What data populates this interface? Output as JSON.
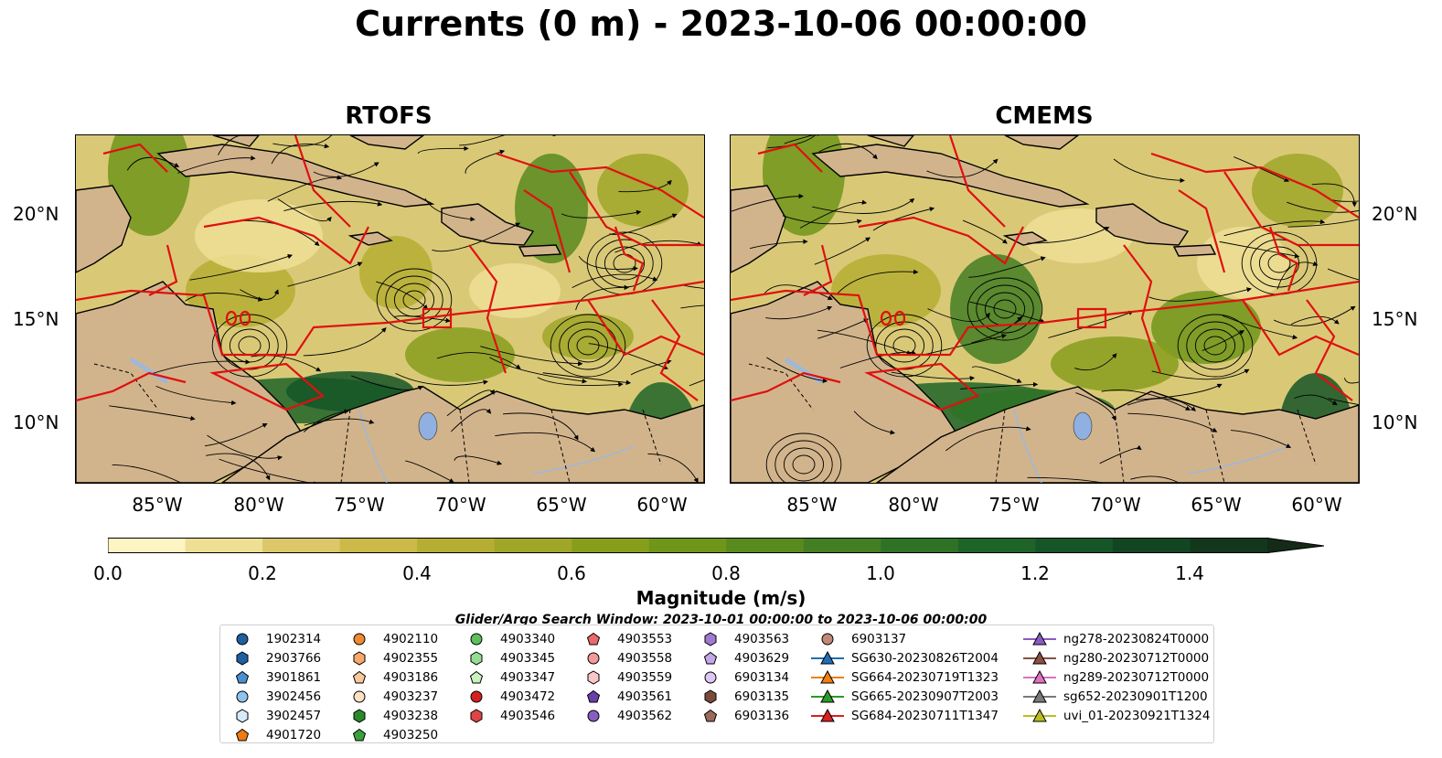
{
  "title": "Currents (0 m) - 2023-10-06 00:00:00",
  "panels": [
    {
      "title": "RTOFS"
    },
    {
      "title": "CMEMS"
    }
  ],
  "axes": {
    "lat_ticks": [
      "20°N",
      "15°N",
      "10°N"
    ],
    "lon_ticks": [
      "85°W",
      "80°W",
      "75°W",
      "70°W",
      "65°W",
      "60°W"
    ],
    "lon_range": [
      -89,
      -58
    ],
    "lat_range": [
      7,
      24
    ]
  },
  "colorbar": {
    "label": "Magnitude (m/s)",
    "ticks": [
      "0.0",
      "0.2",
      "0.4",
      "0.6",
      "0.8",
      "1.0",
      "1.2",
      "1.4"
    ],
    "range": [
      0,
      1.5
    ],
    "extend": "max",
    "colors": [
      "#fdf5c4",
      "#efdf95",
      "#dcc76a",
      "#cbb94a",
      "#b5ae33",
      "#9fa628",
      "#879e1d",
      "#6f9519",
      "#588a1e",
      "#437e22",
      "#2f7226",
      "#1e6428",
      "#155527",
      "#124622",
      "#12371c",
      "#152a17"
    ]
  },
  "search_window": "Glider/Argo Search Window: 2023-10-01 00:00:00 to 2023-10-06 00:00:00",
  "legend": {
    "columns": [
      [
        {
          "label": "1902314",
          "marker": "circle",
          "color": "#1f5f9f"
        },
        {
          "label": "2903766",
          "marker": "hexagon",
          "color": "#1f5f9f"
        },
        {
          "label": "3901861",
          "marker": "pentagon",
          "color": "#4a90d0"
        },
        {
          "label": "3902456",
          "marker": "circle",
          "color": "#8ec3ee"
        },
        {
          "label": "3902457",
          "marker": "hexagon",
          "color": "#d6ebfa"
        },
        {
          "label": "4901720",
          "marker": "pentagon",
          "color": "#ee7a10"
        }
      ],
      [
        {
          "label": "4902110",
          "marker": "circle",
          "color": "#f08a30"
        },
        {
          "label": "4902355",
          "marker": "hexagon",
          "color": "#f7a86a"
        },
        {
          "label": "4903186",
          "marker": "pentagon",
          "color": "#f9c89a"
        },
        {
          "label": "4903237",
          "marker": "circle",
          "color": "#fde2c2"
        },
        {
          "label": "4903238",
          "marker": "hexagon",
          "color": "#2a8a2a"
        },
        {
          "label": "4903250",
          "marker": "pentagon",
          "color": "#3aa03a"
        }
      ],
      [
        {
          "label": "4903340",
          "marker": "circle",
          "color": "#5cc05c"
        },
        {
          "label": "4903345",
          "marker": "hexagon",
          "color": "#94de94"
        },
        {
          "label": "4903347",
          "marker": "pentagon",
          "color": "#c8f3c0"
        },
        {
          "label": "4903472",
          "marker": "circle",
          "color": "#d62020"
        },
        {
          "label": "4903546",
          "marker": "hexagon",
          "color": "#e04444"
        }
      ],
      [
        {
          "label": "4903553",
          "marker": "pentagon",
          "color": "#ea6a6a"
        },
        {
          "label": "4903558",
          "marker": "circle",
          "color": "#f49a9a"
        },
        {
          "label": "4903559",
          "marker": "hexagon",
          "color": "#fac6c6"
        },
        {
          "label": "4903561",
          "marker": "pentagon",
          "color": "#6a3fa8"
        },
        {
          "label": "4903562",
          "marker": "circle",
          "color": "#8a5cc0"
        }
      ],
      [
        {
          "label": "4903563",
          "marker": "hexagon",
          "color": "#a07ad0"
        },
        {
          "label": "4903629",
          "marker": "pentagon",
          "color": "#c4a6ea"
        },
        {
          "label": "6903134",
          "marker": "circle",
          "color": "#dcc6f4"
        },
        {
          "label": "6903135",
          "marker": "hexagon",
          "color": "#7a4a3a"
        },
        {
          "label": "6903136",
          "marker": "pentagon",
          "color": "#9a6a5a"
        }
      ],
      [
        {
          "label": "6903137",
          "marker": "circle",
          "color": "#c08a7a"
        },
        {
          "label": "SG630-20230826T2004",
          "marker": "triangle-line",
          "color": "#1f6fb4"
        },
        {
          "label": "SG664-20230719T1323",
          "marker": "triangle-line",
          "color": "#f07f10"
        },
        {
          "label": "SG665-20230907T2003",
          "marker": "triangle-line",
          "color": "#2a9a2a"
        },
        {
          "label": "SG684-20230711T1347",
          "marker": "triangle-line",
          "color": "#d62020"
        }
      ],
      [
        {
          "label": "ng278-20230824T0000",
          "marker": "triangle-line",
          "color": "#8a5cc0"
        },
        {
          "label": "ng280-20230712T0000",
          "marker": "triangle-line",
          "color": "#8a5040"
        },
        {
          "label": "ng289-20230712T0000",
          "marker": "triangle-line",
          "color": "#e070c0"
        },
        {
          "label": "sg652-20230901T1200",
          "marker": "triangle-line",
          "color": "#7a7a7a"
        },
        {
          "label": "uvi_01-20230921T1324",
          "marker": "triangle-line",
          "color": "#bcbd22"
        }
      ]
    ]
  }
}
